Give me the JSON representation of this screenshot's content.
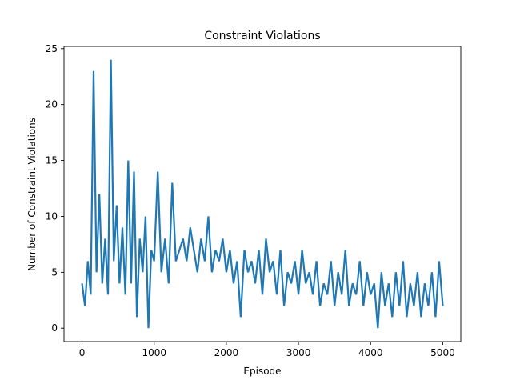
{
  "chart_data": {
    "type": "line",
    "title": "Constraint Violations",
    "xlabel": "Episode",
    "ylabel": "Number of Constraint Violations",
    "xlim": [
      -250,
      5250
    ],
    "ylim": [
      -1.2,
      25.2
    ],
    "xticks": [
      0,
      1000,
      2000,
      3000,
      4000,
      5000
    ],
    "yticks": [
      0,
      5,
      10,
      15,
      20,
      25
    ],
    "grid": false,
    "legend": "none",
    "series": [
      {
        "color": "#1f77b4",
        "x": [
          0,
          40,
          80,
          120,
          160,
          200,
          240,
          280,
          320,
          360,
          400,
          440,
          480,
          520,
          560,
          600,
          640,
          680,
          720,
          760,
          800,
          840,
          880,
          920,
          960,
          1000,
          1050,
          1100,
          1150,
          1200,
          1250,
          1300,
          1350,
          1400,
          1450,
          1500,
          1550,
          1600,
          1650,
          1700,
          1750,
          1800,
          1850,
          1900,
          1950,
          2000,
          2050,
          2100,
          2150,
          2200,
          2250,
          2300,
          2350,
          2400,
          2450,
          2500,
          2550,
          2600,
          2650,
          2700,
          2750,
          2800,
          2850,
          2900,
          2950,
          3000,
          3050,
          3100,
          3150,
          3200,
          3250,
          3300,
          3350,
          3400,
          3450,
          3500,
          3550,
          3600,
          3650,
          3700,
          3750,
          3800,
          3850,
          3900,
          3950,
          4000,
          4050,
          4100,
          4150,
          4200,
          4250,
          4300,
          4350,
          4400,
          4450,
          4500,
          4550,
          4600,
          4650,
          4700,
          4750,
          4800,
          4850,
          4900,
          4950,
          5000
        ],
        "y": [
          4,
          2,
          6,
          3,
          23,
          5,
          12,
          4,
          8,
          3,
          24,
          6,
          11,
          4,
          9,
          3,
          15,
          4,
          14,
          1,
          8,
          5,
          10,
          0,
          7,
          6,
          14,
          5,
          8,
          4,
          13,
          6,
          7,
          8,
          6,
          9,
          7,
          5,
          8,
          6,
          10,
          5,
          7,
          6,
          8,
          5,
          7,
          4,
          6,
          1,
          7,
          5,
          6,
          4,
          7,
          3,
          8,
          5,
          6,
          3,
          7,
          2,
          5,
          4,
          6,
          3,
          7,
          4,
          5,
          3,
          6,
          2,
          4,
          3,
          6,
          2,
          5,
          3,
          7,
          2,
          4,
          3,
          6,
          2,
          5,
          3,
          4,
          0,
          5,
          2,
          4,
          1,
          5,
          2,
          6,
          1,
          4,
          2,
          5,
          1,
          4,
          2,
          5,
          1,
          6,
          2
        ]
      }
    ]
  }
}
